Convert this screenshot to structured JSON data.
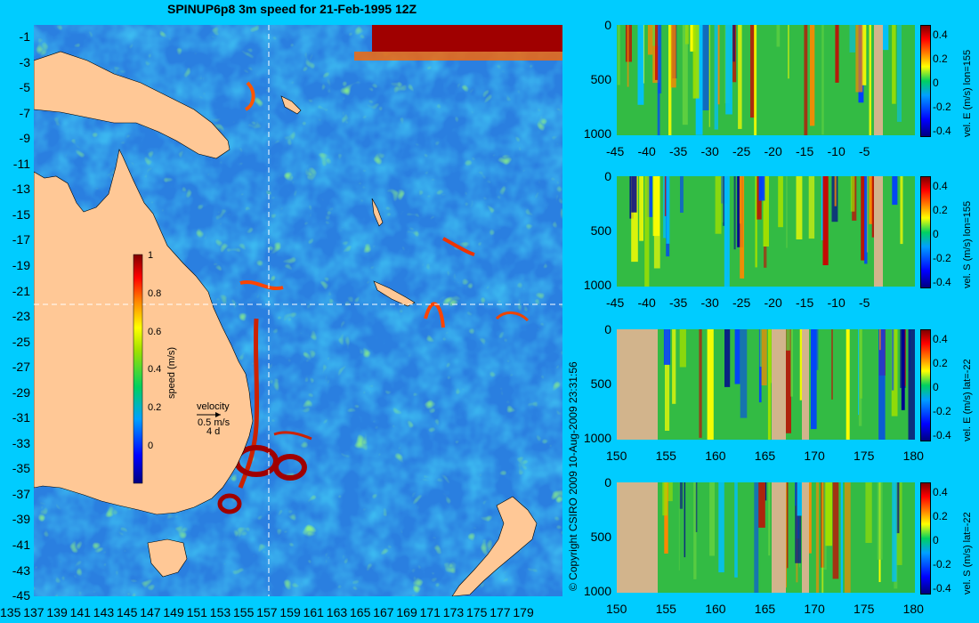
{
  "title": "SPINUP6p8 3m speed for 21-Feb-1995 12Z",
  "copyright": "© Copyright CSIRO 2009   10-Aug-2009 23:31:56",
  "map": {
    "y_ticks": [
      "-1",
      "-3",
      "-5",
      "-7",
      "-9",
      "-11",
      "-13",
      "-15",
      "-17",
      "-19",
      "-21",
      "-23",
      "-25",
      "-27",
      "-29",
      "-31",
      "-33",
      "-35",
      "-37",
      "-39",
      "-41",
      "-43",
      "-45"
    ],
    "x_ticks": [
      "135",
      "137",
      "139",
      "141",
      "143",
      "145",
      "147",
      "149",
      "151",
      "153",
      "155",
      "157",
      "159",
      "161",
      "163",
      "165",
      "167",
      "169",
      "171",
      "173",
      "175",
      "177",
      "179"
    ],
    "crosshair_lon": 155,
    "crosshair_lat": -22,
    "colorbar": {
      "label": "speed (m/s)",
      "ticks": [
        "1",
        "0.8",
        "0.6",
        "0.4",
        "0.2",
        "0"
      ],
      "range": [
        -0.2,
        1
      ]
    },
    "velocity_key": {
      "title": "velocity",
      "speed": "0.5 m/s",
      "time": "4 d"
    }
  },
  "sections": [
    {
      "id": "lon155-e",
      "label": "vel. E (m/s) lon=155",
      "x_ticks": [
        "-45",
        "-40",
        "-35",
        "-30",
        "-25",
        "-20",
        "-15",
        "-10",
        "-5"
      ],
      "y_ticks": [
        "0",
        "500",
        "1000"
      ],
      "cb_ticks": [
        "0.4",
        "0.2",
        "0",
        "-0.2",
        "-0.4"
      ]
    },
    {
      "id": "lon155-s",
      "label": "vel. S (m/s) lon=155",
      "x_ticks": [
        "-45",
        "-40",
        "-35",
        "-30",
        "-25",
        "-20",
        "-15",
        "-10",
        "-5"
      ],
      "y_ticks": [
        "0",
        "500",
        "1000"
      ],
      "cb_ticks": [
        "0.4",
        "0.2",
        "0",
        "-0.2",
        "-0.4"
      ]
    },
    {
      "id": "lat22-e",
      "label": "vel. E (m/s) lat=-22",
      "x_ticks": [
        "150",
        "155",
        "160",
        "165",
        "170",
        "175",
        "180"
      ],
      "y_ticks": [
        "0",
        "500",
        "1000"
      ],
      "cb_ticks": [
        "0.4",
        "0.2",
        "0",
        "-0.2",
        "-0.4"
      ]
    },
    {
      "id": "lat22-s",
      "label": "vel. S (m/s) lat=-22",
      "x_ticks": [
        "150",
        "155",
        "160",
        "165",
        "170",
        "175",
        "180"
      ],
      "y_ticks": [
        "0",
        "500",
        "1000"
      ],
      "cb_ticks": [
        "0.4",
        "0.2",
        "0",
        "-0.2",
        "-0.4"
      ]
    }
  ],
  "colors": {
    "background": "#00ccff",
    "ocean": "#2a7fe0",
    "land": "#ffc896",
    "section_land": "#d2b48c",
    "section_base": "#33bb44"
  }
}
